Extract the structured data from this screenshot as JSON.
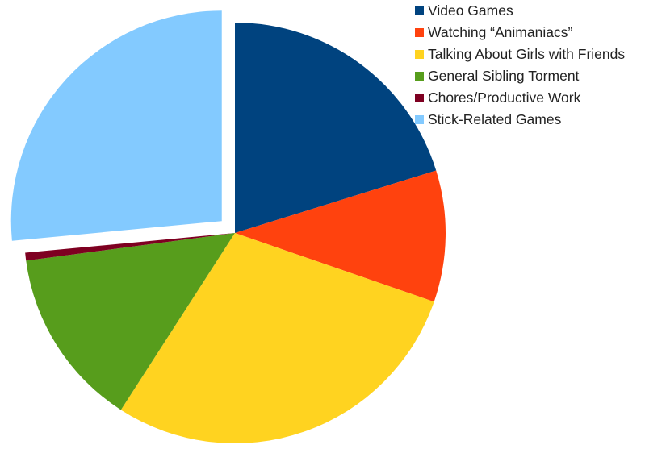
{
  "chart_data": {
    "type": "pie",
    "title": "",
    "legend_position": "top-right",
    "exploded_slice": "Stick-Related Games",
    "slices": [
      {
        "label": "Video Games",
        "value": 20.2,
        "color": "#00437F"
      },
      {
        "label": "Watching “Animaniacs”",
        "value": 10.1,
        "color": "#FF420E"
      },
      {
        "label": "Talking About Girls with Friends",
        "value": 28.8,
        "color": "#FFD320"
      },
      {
        "label": "General Sibling Torment",
        "value": 13.8,
        "color": "#579D1C"
      },
      {
        "label": "Chores/Productive Work",
        "value": 0.6,
        "color": "#7E0021"
      },
      {
        "label": "Stick-Related Games",
        "value": 26.5,
        "color": "#83CAFF"
      }
    ]
  }
}
